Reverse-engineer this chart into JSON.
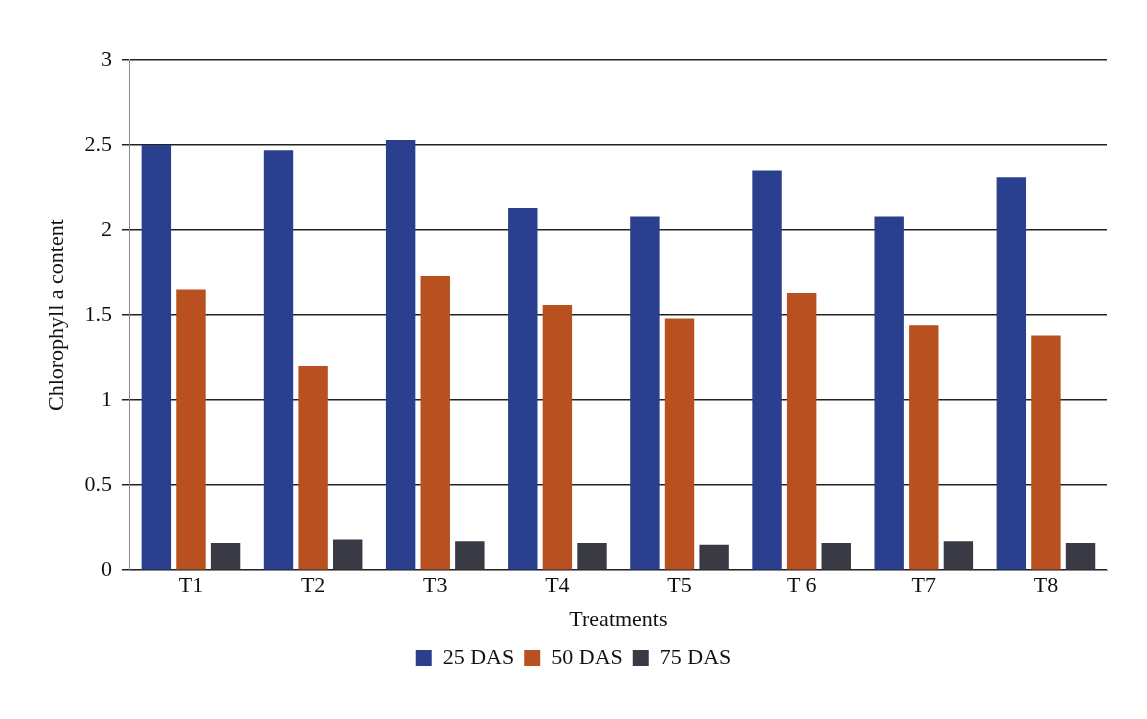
{
  "chart_data": {
    "type": "bar",
    "xlabel": "Treatments",
    "ylabel": "Chlorophyll a content",
    "categories": [
      "T1",
      "T2",
      "T3",
      "T4",
      "T5",
      "T 6",
      "T7",
      "T8"
    ],
    "series": [
      {
        "name": "25 DAS",
        "color": "#2b3f8f",
        "values": [
          2.5,
          2.47,
          2.53,
          2.13,
          2.08,
          2.35,
          2.08,
          2.31
        ]
      },
      {
        "name": "50 DAS",
        "color": "#b8501f",
        "values": [
          1.65,
          1.2,
          1.73,
          1.56,
          1.48,
          1.63,
          1.44,
          1.38
        ]
      },
      {
        "name": "75 DAS",
        "color": "#3a3a44",
        "values": [
          0.16,
          0.18,
          0.17,
          0.16,
          0.15,
          0.16,
          0.17,
          0.16
        ]
      }
    ],
    "ylim": [
      0,
      3
    ],
    "yticks": [
      0,
      0.5,
      1,
      1.5,
      2,
      2.5,
      3
    ],
    "grid": "y",
    "legend": "bottom"
  }
}
